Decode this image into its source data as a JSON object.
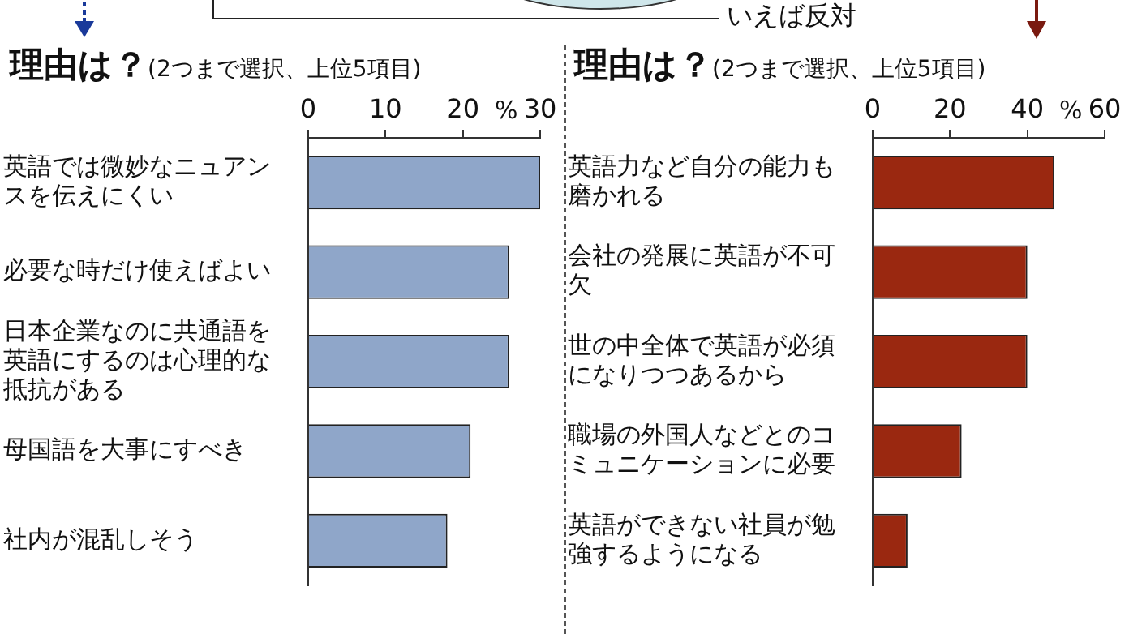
{
  "chart_data": [
    {
      "type": "bar",
      "orientation": "horizontal",
      "title": "理由は？",
      "subtitle": "(2つまで選択、上位5項目)",
      "xlabel": "%",
      "categories": [
        "英語では微妙なニュアンスを伝えにくい",
        "必要な時だけ使えばよい",
        "日本企業なのに共通語を英語にするのは心理的な抵抗がある",
        "母国語を大事にすべき",
        "社内が混乱しそう"
      ],
      "values": [
        30,
        26,
        26,
        21,
        18
      ],
      "color": "#8fa6c9",
      "xlim": [
        0,
        30
      ],
      "xticks": [
        0,
        10,
        20,
        30
      ]
    },
    {
      "type": "bar",
      "orientation": "horizontal",
      "title": "理由は？",
      "subtitle": "(2つまで選択、上位5項目)",
      "xlabel": "%",
      "categories": [
        "英語力など自分の能力も磨かれる",
        "会社の発展に英語が不可欠",
        "世の中全体で英語が必須になりつつあるから",
        "職場の外国人などとのコミュニケーションに必要",
        "英語ができない社員が勉強するようになる"
      ],
      "values": [
        47,
        40,
        40,
        23,
        9
      ],
      "color": "#9a2810",
      "xlim": [
        0,
        60
      ],
      "xticks": [
        0,
        20,
        40,
        60
      ],
      "annotations": [
        "いえば反対"
      ]
    }
  ]
}
